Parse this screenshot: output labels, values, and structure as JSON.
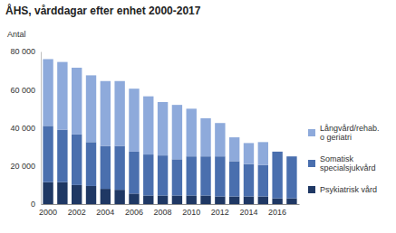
{
  "chart_data": {
    "type": "bar",
    "stacked": true,
    "title": "ÅHS, vårddagar efter enhet 2000-2017",
    "ylabel": "Antal",
    "categories": [
      "2000",
      null,
      "2002",
      null,
      "2004",
      null,
      "2006",
      null,
      "2008",
      null,
      "2010",
      null,
      "2012",
      null,
      "2014",
      null,
      "2016",
      null
    ],
    "series": [
      {
        "name": "Psykiatrisk vård",
        "color": "#1f3864",
        "values": [
          11500,
          11500,
          10000,
          9500,
          8000,
          7500,
          5500,
          4500,
          4500,
          4500,
          4500,
          4500,
          4000,
          4000,
          4000,
          4000,
          3000,
          3000
        ]
      },
      {
        "name": "Somatisk specialsjukvård",
        "color": "#4a6fae",
        "values": [
          29500,
          27500,
          26500,
          23000,
          22500,
          23000,
          22000,
          21500,
          21000,
          19000,
          20500,
          20500,
          21000,
          18500,
          17000,
          16500,
          24500,
          22000
        ]
      },
      {
        "name": "Långvård/rehab. o geriatri",
        "color": "#8eaadb",
        "values": [
          35000,
          35500,
          35000,
          35000,
          34000,
          34000,
          33000,
          30500,
          28000,
          28500,
          25000,
          20000,
          17500,
          12500,
          11000,
          12000,
          0,
          0
        ]
      }
    ],
    "ylim": [
      0,
      80000
    ],
    "yticks": [
      0,
      {
        "value": 20000,
        "label": "20 000"
      },
      {
        "value": 40000,
        "label": "40 000"
      },
      {
        "value": 60000,
        "label": "60 000"
      },
      {
        "value": 80000,
        "label": "80 000"
      }
    ],
    "grid": false,
    "legend": "right"
  }
}
